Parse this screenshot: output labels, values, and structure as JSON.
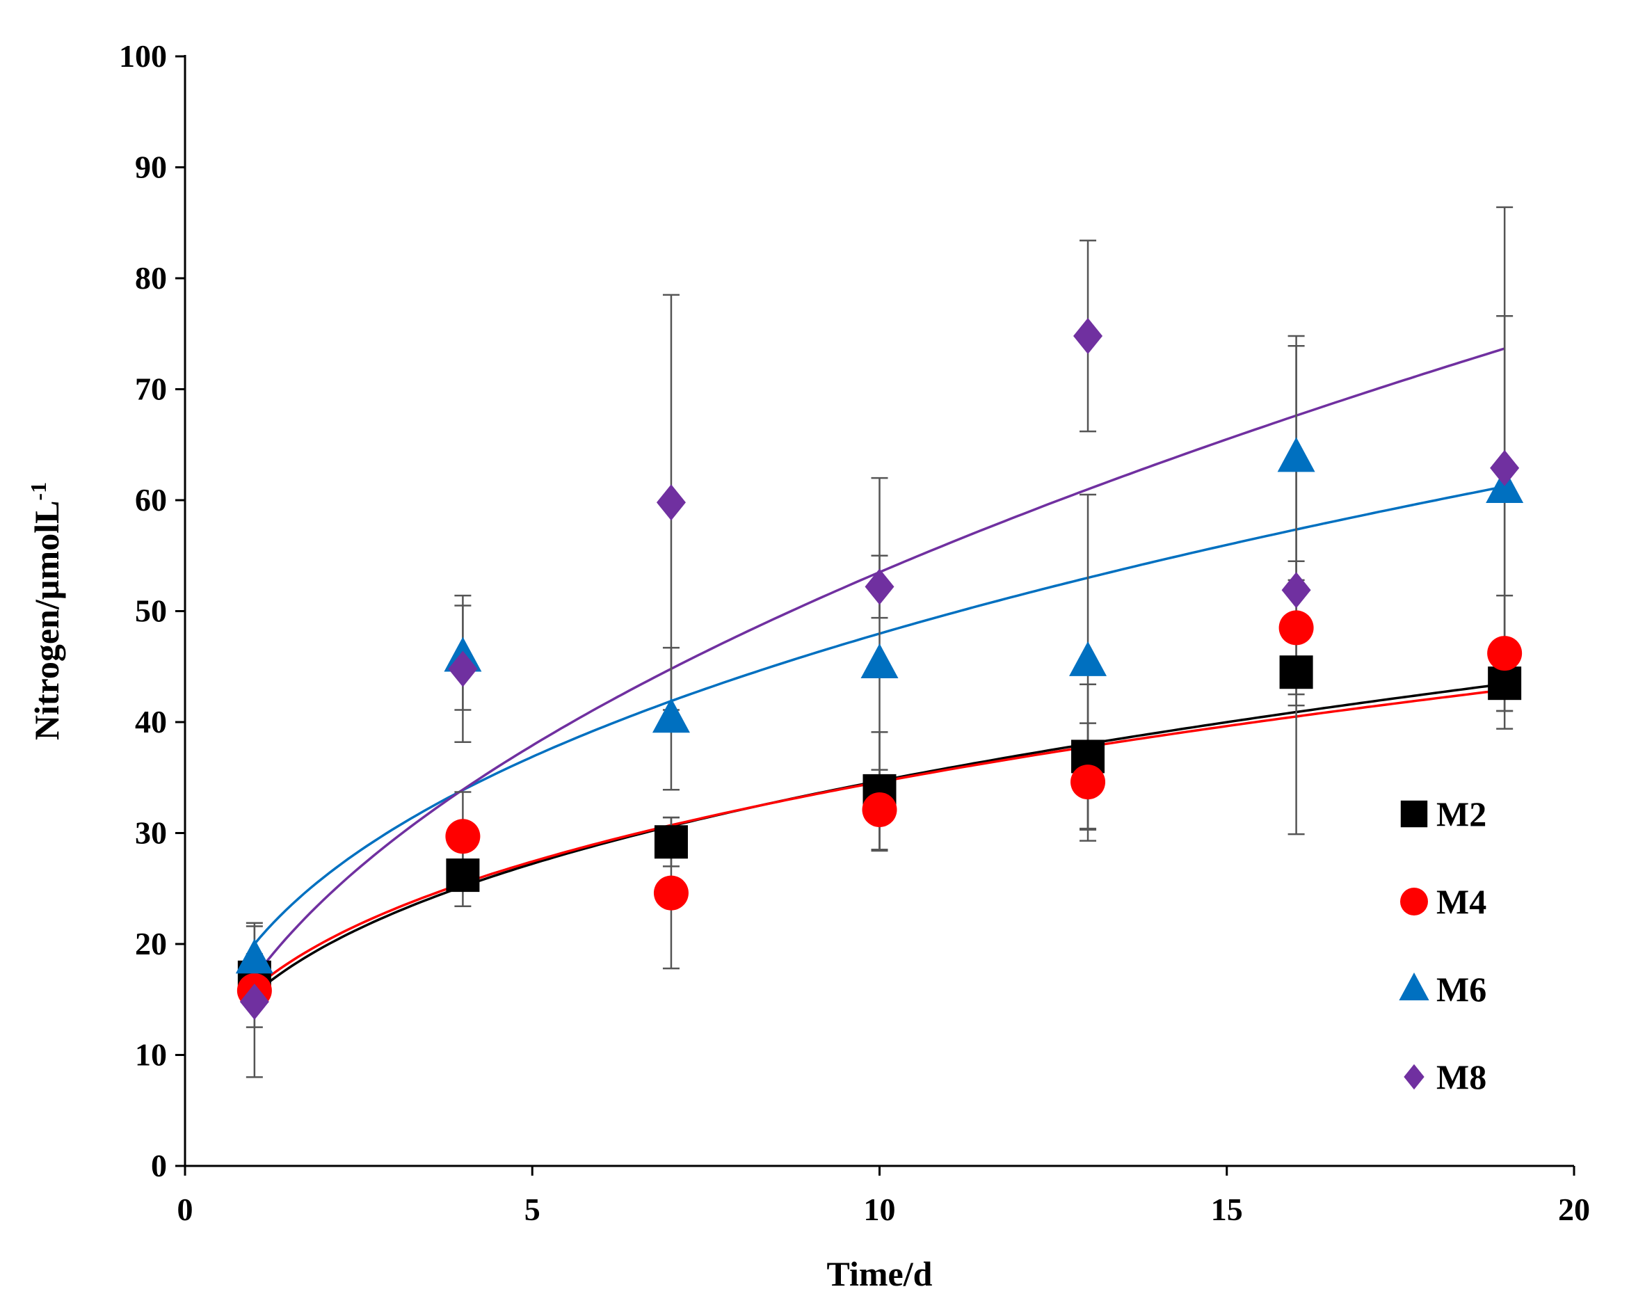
{
  "chart_data": {
    "type": "scatter",
    "title": "",
    "xlabel": "Time/d",
    "ylabel_main": "Nitrogen/µmolL",
    "ylabel_sup": "-1",
    "xlim": [
      0,
      20
    ],
    "ylim": [
      0,
      100
    ],
    "xticks": [
      0,
      5,
      10,
      15,
      20
    ],
    "yticks": [
      0,
      10,
      20,
      30,
      40,
      50,
      60,
      70,
      80,
      90,
      100
    ],
    "grid": false,
    "legend_position": "right",
    "x": [
      1,
      4,
      7,
      10,
      13,
      16,
      19
    ],
    "series": [
      {
        "name": "M2",
        "marker": "square",
        "color": "#000000",
        "values": [
          17.0,
          26.2,
          29.2,
          33.8,
          36.9,
          44.5,
          43.5
        ],
        "errors": [
          1.4,
          2.8,
          2.2,
          5.3,
          6.5,
          3.0,
          2.5
        ],
        "fit": {
          "a": 15.5,
          "b": 0.35
        }
      },
      {
        "name": "M4",
        "marker": "circle",
        "color": "#ff0000",
        "values": [
          15.8,
          29.7,
          24.6,
          32.1,
          34.6,
          48.5,
          46.2
        ],
        "errors": [
          3.3,
          4.0,
          6.8,
          3.6,
          5.3,
          6.0,
          5.2
        ],
        "fit": {
          "a": 16.0,
          "b": 0.335
        }
      },
      {
        "name": "M6",
        "marker": "triangle",
        "color": "#0070c0",
        "values": [
          18.6,
          45.8,
          40.3,
          45.2,
          45.4,
          63.8,
          61.0
        ],
        "errors": [
          3.3,
          4.7,
          6.4,
          16.8,
          15.1,
          11.0,
          15.6
        ],
        "fit": {
          "a": 20.0,
          "b": 0.38
        }
      },
      {
        "name": "M8",
        "marker": "diamond",
        "color": "#7030a0",
        "values": [
          14.8,
          44.8,
          59.8,
          52.2,
          74.8,
          51.9,
          62.9
        ],
        "errors": [
          6.8,
          6.6,
          18.7,
          2.8,
          8.6,
          22.0,
          23.5
        ],
        "fit": {
          "a": 17.0,
          "b": 0.498
        }
      }
    ]
  }
}
